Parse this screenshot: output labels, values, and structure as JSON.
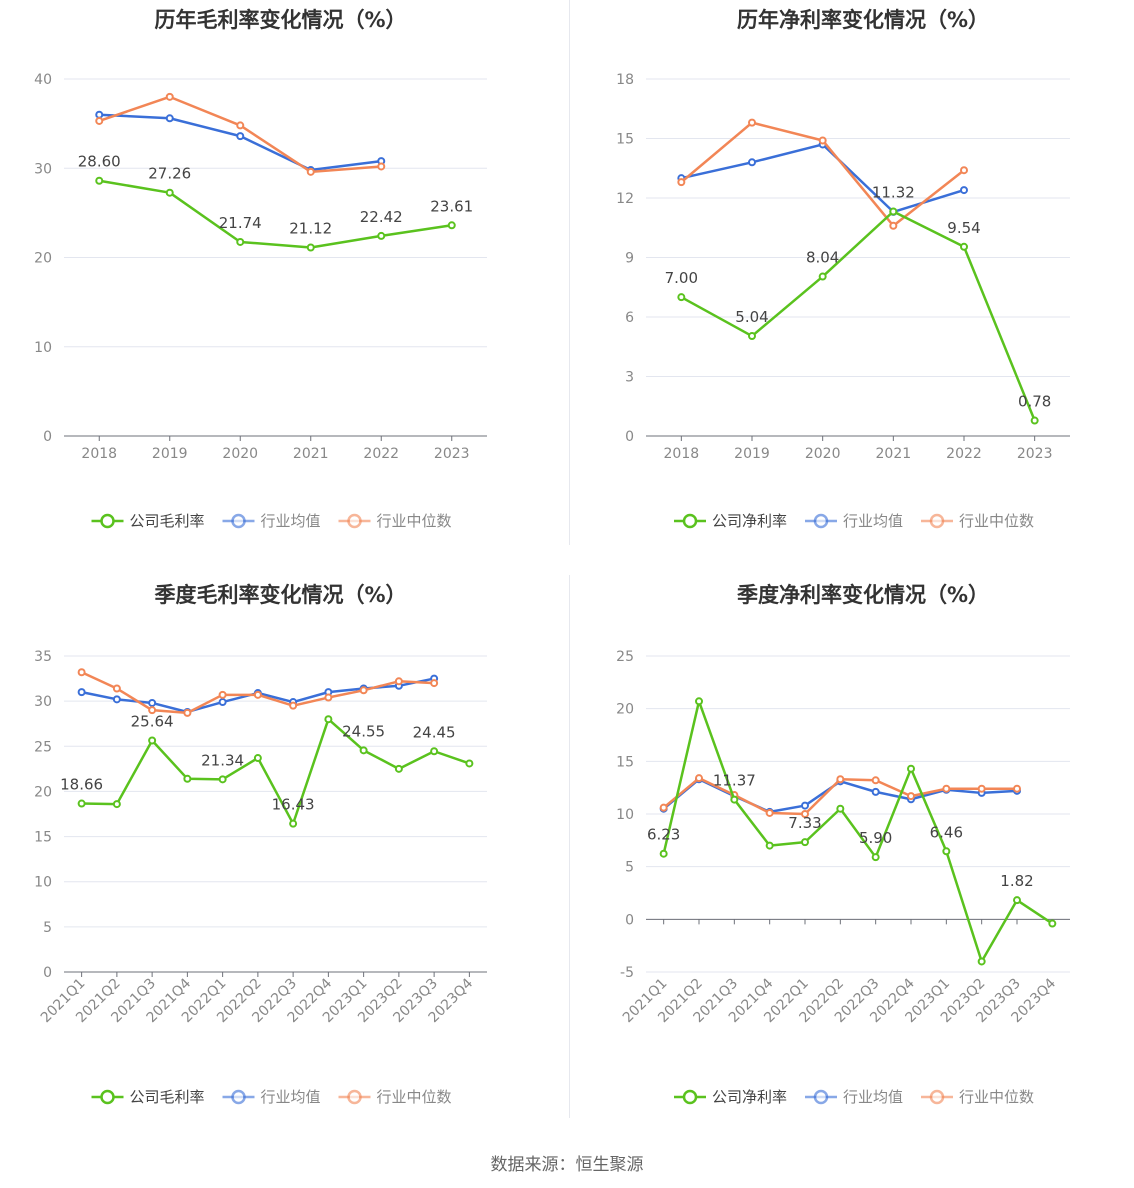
{
  "chart_data": [
    {
      "type": "line",
      "title": "历年毛利率变化情况（%）",
      "categories": [
        "2018",
        "2019",
        "2020",
        "2021",
        "2022",
        "2023"
      ],
      "ylim": [
        0,
        40
      ],
      "yticks": [
        0,
        10,
        20,
        30,
        40
      ],
      "grid": true,
      "legend_position": "bottom",
      "series": [
        {
          "name": "公司毛利率",
          "color": "#5ac21e",
          "values": [
            28.6,
            27.26,
            21.74,
            21.12,
            22.42,
            23.61
          ],
          "labels": [
            "28.60",
            "27.26",
            "21.74",
            "21.12",
            "22.42",
            "23.61"
          ]
        },
        {
          "name": "行业均值",
          "color": "#3a6fd8",
          "values": [
            36.0,
            35.6,
            33.6,
            29.8,
            30.8,
            null
          ]
        },
        {
          "name": "行业中位数",
          "color": "#f28656",
          "values": [
            35.3,
            38.0,
            34.8,
            29.6,
            30.2,
            null
          ]
        }
      ]
    },
    {
      "type": "line",
      "title": "历年净利率变化情况（%）",
      "categories": [
        "2018",
        "2019",
        "2020",
        "2021",
        "2022",
        "2023"
      ],
      "ylim": [
        0,
        18
      ],
      "yticks": [
        0,
        3,
        6,
        9,
        12,
        15,
        18
      ],
      "grid": true,
      "legend_position": "bottom",
      "series": [
        {
          "name": "公司净利率",
          "color": "#5ac21e",
          "values": [
            7.0,
            5.04,
            8.04,
            11.32,
            9.54,
            0.78
          ],
          "labels": [
            "7.00",
            "5.04",
            "8.04",
            "11.32",
            "9.54",
            "0.78"
          ]
        },
        {
          "name": "行业均值",
          "color": "#3a6fd8",
          "values": [
            13.0,
            13.8,
            14.7,
            11.3,
            12.4,
            null
          ]
        },
        {
          "name": "行业中位数",
          "color": "#f28656",
          "values": [
            12.8,
            15.8,
            14.9,
            10.6,
            13.4,
            null
          ]
        }
      ]
    },
    {
      "type": "line",
      "title": "季度毛利率变化情况（%）",
      "categories": [
        "2021Q1",
        "2021Q2",
        "2021Q3",
        "2021Q4",
        "2022Q1",
        "2022Q2",
        "2022Q3",
        "2022Q4",
        "2023Q1",
        "2023Q2",
        "2023Q3",
        "2023Q4"
      ],
      "ylim": [
        0,
        35
      ],
      "yticks": [
        0,
        5,
        10,
        15,
        20,
        25,
        30,
        35
      ],
      "grid": true,
      "legend_position": "bottom",
      "series": [
        {
          "name": "公司毛利率",
          "color": "#5ac21e",
          "values": [
            18.66,
            18.6,
            25.64,
            21.4,
            21.34,
            23.7,
            16.43,
            28.0,
            24.55,
            22.5,
            24.45,
            23.1
          ],
          "labels": [
            "18.66",
            "",
            "25.64",
            "",
            "21.34",
            "",
            "16.43",
            "",
            "24.55",
            "",
            "24.45",
            ""
          ]
        },
        {
          "name": "行业均值",
          "color": "#3a6fd8",
          "values": [
            31.0,
            30.2,
            29.8,
            28.8,
            29.9,
            30.9,
            29.9,
            31.0,
            31.4,
            31.7,
            32.5,
            null
          ]
        },
        {
          "name": "行业中位数",
          "color": "#f28656",
          "values": [
            33.2,
            31.4,
            29.0,
            28.7,
            30.7,
            30.7,
            29.5,
            30.4,
            31.2,
            32.2,
            32.0,
            null
          ]
        }
      ]
    },
    {
      "type": "line",
      "title": "季度净利率变化情况（%）",
      "categories": [
        "2021Q1",
        "2021Q2",
        "2021Q3",
        "2021Q4",
        "2022Q1",
        "2022Q2",
        "2022Q3",
        "2022Q4",
        "2023Q1",
        "2023Q2",
        "2023Q3",
        "2023Q4"
      ],
      "ylim": [
        -5,
        25
      ],
      "yticks": [
        -5,
        0,
        5,
        10,
        15,
        20,
        25
      ],
      "grid": true,
      "legend_position": "bottom",
      "series": [
        {
          "name": "公司净利率",
          "color": "#5ac21e",
          "values": [
            6.23,
            20.7,
            11.37,
            7.0,
            7.33,
            10.5,
            5.9,
            14.3,
            6.46,
            -4.0,
            1.82,
            -0.4
          ],
          "labels": [
            "6.23",
            "",
            "11.37",
            "",
            "7.33",
            "",
            "5.90",
            "",
            "6.46",
            "",
            "1.82",
            ""
          ]
        },
        {
          "name": "行业均值",
          "color": "#3a6fd8",
          "values": [
            10.5,
            13.3,
            11.7,
            10.2,
            10.8,
            13.1,
            12.1,
            11.4,
            12.3,
            12.0,
            12.2,
            null
          ]
        },
        {
          "name": "行业中位数",
          "color": "#f28656",
          "values": [
            10.6,
            13.4,
            11.8,
            10.1,
            10.0,
            13.3,
            13.2,
            11.7,
            12.4,
            12.4,
            12.4,
            null
          ]
        }
      ]
    }
  ],
  "source_text": "数据来源：恒生聚源"
}
